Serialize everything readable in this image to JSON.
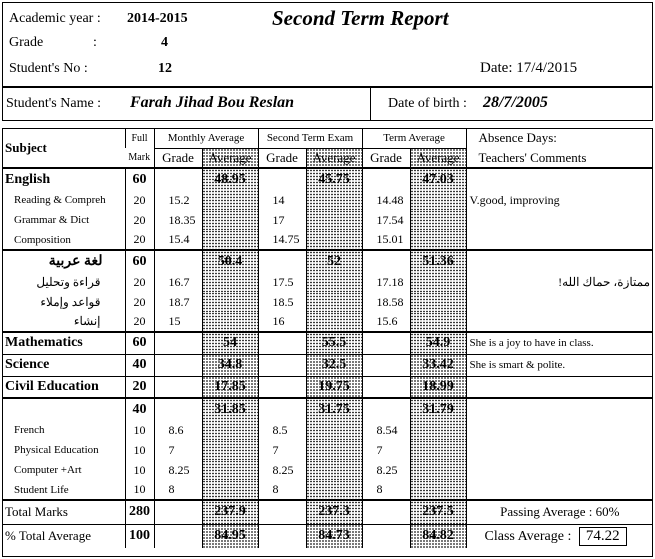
{
  "header": {
    "academic_year_label": "Academic year :",
    "academic_year": "2014-2015",
    "grade_label": "Grade",
    "grade_colon": ":",
    "grade": "4",
    "student_no_label": "Student's No :",
    "student_no": "12",
    "title": "Second Term Report",
    "date_label": "Date:",
    "date": "17/4/2015",
    "student_name_label": "Student's Name :",
    "student_name": "Farah Jihad Bou Reslan",
    "dob_label": "Date of birth :",
    "dob": "28/7/2005"
  },
  "columns": {
    "subject": "Subject",
    "full": "Full",
    "mark": "Mark",
    "monthly": "Monthly Average",
    "exam": "Second Term Exam",
    "term": "Term Average",
    "grade": "Grade",
    "average": "Average",
    "absence": "Absence Days:",
    "comments": "Teachers' Comments"
  },
  "rows": [
    {
      "kind": "main",
      "name": "English",
      "full": "60",
      "m_grade": "",
      "m_avg": "48.95",
      "e_grade": "",
      "e_avg": "45.75",
      "t_grade": "",
      "t_avg": "47.03",
      "comment": ""
    },
    {
      "kind": "sub",
      "name": "Reading & Compreh",
      "full": "20",
      "m_grade": "15.2",
      "m_avg": "",
      "e_grade": "14",
      "e_avg": "",
      "t_grade": "14.48",
      "t_avg": "",
      "comment": "V.good, improving"
    },
    {
      "kind": "sub",
      "name": "Grammar & Dict",
      "full": "20",
      "m_grade": "18.35",
      "m_avg": "",
      "e_grade": "17",
      "e_avg": "",
      "t_grade": "17.54",
      "t_avg": "",
      "comment": ""
    },
    {
      "kind": "sub0",
      "name": "Composition",
      "full": "20",
      "m_grade": "15.4",
      "m_avg": "",
      "e_grade": "14.75",
      "e_avg": "",
      "t_grade": "15.01",
      "t_avg": "",
      "comment": ""
    },
    {
      "kind": "main-ar",
      "name": "لغة عربية",
      "full": "60",
      "m_grade": "",
      "m_avg": "50.4",
      "e_grade": "",
      "e_avg": "52",
      "t_grade": "",
      "t_avg": "51.36",
      "comment": ""
    },
    {
      "kind": "sub-ar",
      "name": "قراءة وتحليل",
      "full": "20",
      "m_grade": "16.7",
      "m_avg": "",
      "e_grade": "17.5",
      "e_avg": "",
      "t_grade": "17.18",
      "t_avg": "",
      "comment": "ممتازة، حماك الله!"
    },
    {
      "kind": "sub-ar",
      "name": "قواعد وإملاء",
      "full": "20",
      "m_grade": "18.7",
      "m_avg": "",
      "e_grade": "18.5",
      "e_avg": "",
      "t_grade": "18.58",
      "t_avg": "",
      "comment": ""
    },
    {
      "kind": "sub-ar",
      "name": "إنشاء",
      "full": "20",
      "m_grade": "15",
      "m_avg": "",
      "e_grade": "16",
      "e_avg": "",
      "t_grade": "15.6",
      "t_avg": "",
      "comment": ""
    },
    {
      "kind": "main",
      "name": "Mathematics",
      "full": "60",
      "m_grade": "",
      "m_avg": "54",
      "e_grade": "",
      "e_avg": "55.5",
      "t_grade": "",
      "t_avg": "54.9",
      "comment": "She is a joy to have in class."
    },
    {
      "kind": "main",
      "name": "Science",
      "full": "40",
      "m_grade": "",
      "m_avg": "34.8",
      "e_grade": "",
      "e_avg": "32.5",
      "t_grade": "",
      "t_avg": "33.42",
      "comment": "She is smart & polite."
    },
    {
      "kind": "main",
      "name": "Civil Education",
      "full": "20",
      "m_grade": "",
      "m_avg": "17.85",
      "e_grade": "",
      "e_avg": "19.75",
      "t_grade": "",
      "t_avg": "18.99",
      "comment": ""
    },
    {
      "kind": "main",
      "name": "",
      "full": "40",
      "m_grade": "",
      "m_avg": "31.85",
      "e_grade": "",
      "e_avg": "31.75",
      "t_grade": "",
      "t_avg": "31.79",
      "comment": ""
    },
    {
      "kind": "sub",
      "name": "French",
      "full": "10",
      "m_grade": "8.6",
      "m_avg": "",
      "e_grade": "8.5",
      "e_avg": "",
      "t_grade": "8.54",
      "t_avg": "",
      "comment": ""
    },
    {
      "kind": "sub",
      "name": "Physical Education",
      "full": "10",
      "m_grade": "7",
      "m_avg": "",
      "e_grade": "7",
      "e_avg": "",
      "t_grade": "7",
      "t_avg": "",
      "comment": ""
    },
    {
      "kind": "sub",
      "name": "Computer +Art",
      "full": "10",
      "m_grade": "8.25",
      "m_avg": "",
      "e_grade": "8.25",
      "e_avg": "",
      "t_grade": "8.25",
      "t_avg": "",
      "comment": ""
    },
    {
      "kind": "sub",
      "name": "Student Life",
      "full": "10",
      "m_grade": "8",
      "m_avg": "",
      "e_grade": "8",
      "e_avg": "",
      "t_grade": "8",
      "t_avg": "",
      "comment": ""
    }
  ],
  "totals": {
    "total_label": "Total Marks",
    "total_full": "280",
    "total_m": "237.9",
    "total_e": "237.3",
    "total_t": "237.5",
    "passing_label": "Passing Average : 60%",
    "pct_label": "% Total Average",
    "pct_full": "100",
    "pct_m": "84.95",
    "pct_e": "84.73",
    "pct_t": "84.82",
    "class_avg_label": "Class Average :",
    "class_avg": "74.22"
  }
}
